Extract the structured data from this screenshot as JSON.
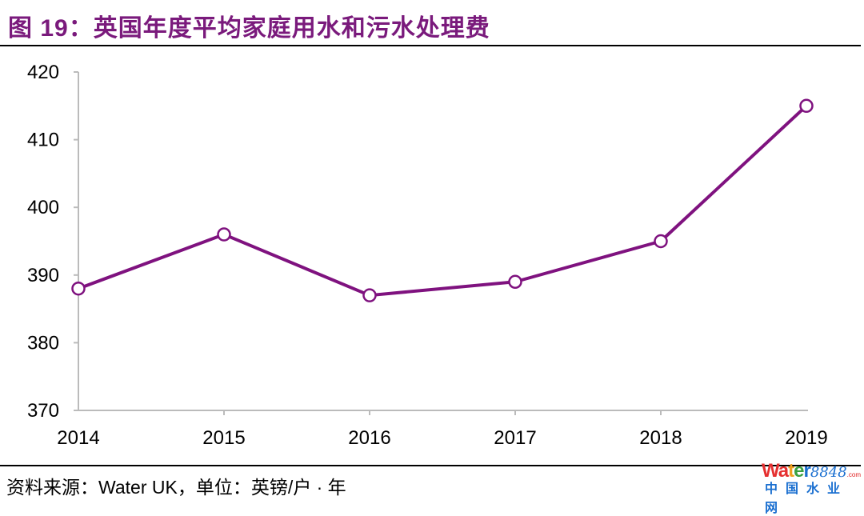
{
  "title": "图 19：英国年度平均家庭用水和污水处理费",
  "source": "资料来源：Water UK，单位：英镑/户 · 年",
  "watermark": {
    "brand": "Water",
    "number": "8848",
    "suffix": ".com",
    "cn": "中国水业网"
  },
  "colors": {
    "line": "#7f127f",
    "title": "#7a1a7c"
  },
  "chart_data": {
    "type": "line",
    "title": "英国年度平均家庭用水和污水处理费",
    "xlabel": "",
    "ylabel": "英镑/户 · 年",
    "categories": [
      "2014",
      "2015",
      "2016",
      "2017",
      "2018",
      "2019"
    ],
    "series": [
      {
        "name": "平均家庭用水和污水处理费",
        "values": [
          388,
          396,
          387,
          389,
          395,
          415
        ]
      }
    ],
    "ylim": [
      370,
      420
    ],
    "yticks": [
      370,
      380,
      390,
      400,
      410,
      420
    ],
    "grid": false,
    "legend": "none"
  }
}
